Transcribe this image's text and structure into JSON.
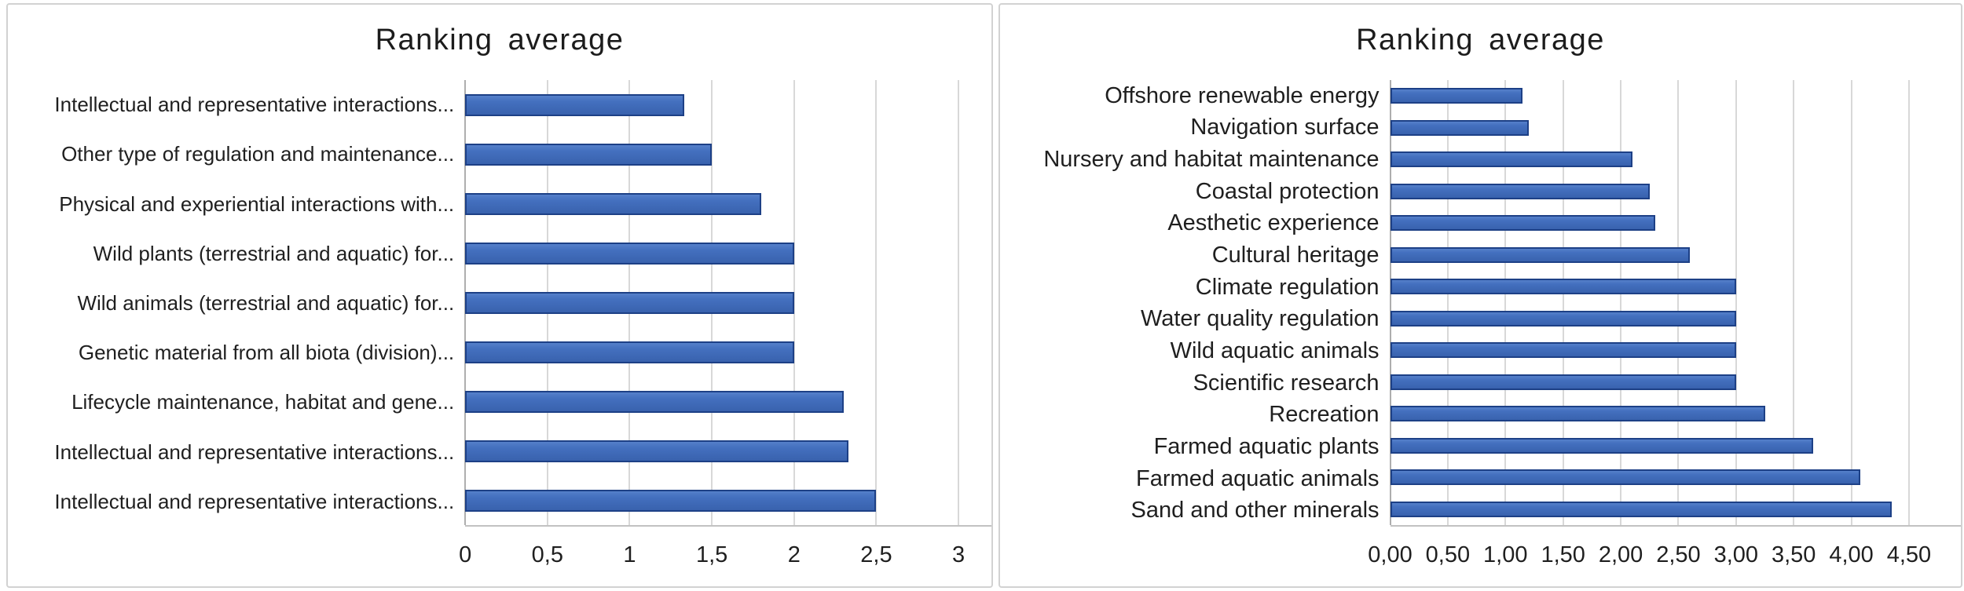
{
  "chart_data": [
    {
      "type": "bar",
      "orientation": "horizontal",
      "title": "Ranking average",
      "categories": [
        "Intellectual and representative interactions...",
        "Other type of regulation and maintenance...",
        "Physical and experiential interactions with...",
        "Wild plants (terrestrial and aquatic) for...",
        "Wild animals (terrestrial and aquatic) for...",
        "Genetic material from all biota (division)...",
        "Lifecycle maintenance, habitat and gene...",
        "Intellectual and representative interactions...",
        "Intellectual and representative interactions..."
      ],
      "values": [
        1.33,
        1.5,
        1.8,
        2,
        2,
        2,
        2.3,
        2.33,
        2.5
      ],
      "xlabel": "",
      "ylabel": "",
      "xlim": [
        0,
        3.2
      ],
      "tick_values": [
        0,
        0.5,
        1,
        1.5,
        2,
        2.5,
        3
      ],
      "tick_labels": [
        "0",
        "0,5",
        "1",
        "1,5",
        "2",
        "2,5",
        "3"
      ],
      "grid": true,
      "legend": "none",
      "label_area_frac": 0.465,
      "colors": {
        "bar_fill": "#4470bf",
        "bar_border": "#1d4086",
        "bar_highlight": "#5580ca",
        "bar_shade": "#3962ae"
      }
    },
    {
      "type": "bar",
      "orientation": "horizontal",
      "title": "Ranking average",
      "categories": [
        "Offshore renewable energy",
        "Navigation surface",
        "Nursery and habitat maintenance",
        "Coastal protection",
        "Aesthetic experience",
        "Cultural heritage",
        "Climate regulation",
        "Water quality regulation",
        "Wild aquatic animals",
        "Scientific research",
        "Recreation",
        "Farmed aquatic plants",
        "Farmed aquatic animals",
        "Sand and other minerals"
      ],
      "values": [
        1.15,
        1.2,
        2.1,
        2.25,
        2.3,
        2.6,
        3,
        3,
        3,
        3,
        3.25,
        3.67,
        4.08,
        4.35
      ],
      "xlabel": "",
      "ylabel": "",
      "xlim": [
        0,
        4.95
      ],
      "tick_values": [
        0,
        0.5,
        1,
        1.5,
        2,
        2.5,
        3,
        3.5,
        4,
        4.5
      ],
      "tick_labels": [
        "0,00",
        "0,50",
        "1,00",
        "1,50",
        "2,00",
        "2,50",
        "3,00",
        "3,50",
        "4,00",
        "4,50"
      ],
      "grid": true,
      "legend": "none",
      "label_area_frac": 0.406,
      "colors": {
        "bar_fill": "#4470bf",
        "bar_border": "#1d4086",
        "bar_highlight": "#5580ca",
        "bar_shade": "#3962ae"
      }
    }
  ]
}
